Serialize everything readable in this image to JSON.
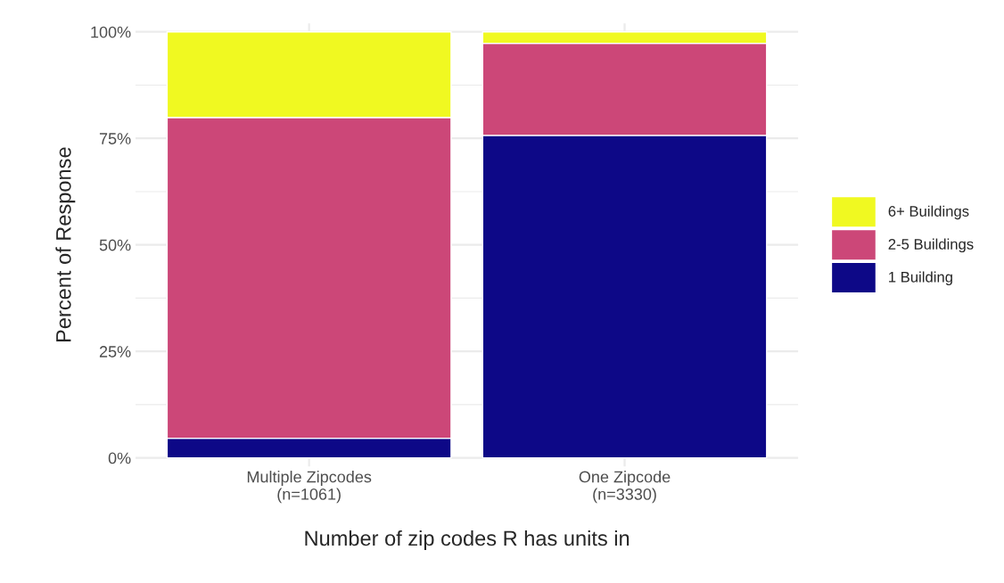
{
  "chart_data": {
    "type": "bar",
    "stacked": true,
    "xlabel": "Number of zip codes R has units in",
    "ylabel": "Percent of Response",
    "categories": [
      "Multiple Zipcodes\n(n=1061)",
      "One Zipcode\n(n=3330)"
    ],
    "series": [
      {
        "name": "1 Building",
        "color": "#0d0887",
        "values": [
          4.6,
          75.7
        ]
      },
      {
        "name": "2-5 Buildings",
        "color": "#cc4778",
        "values": [
          75.3,
          21.6
        ]
      },
      {
        "name": "6+ Buildings",
        "color": "#f0f921",
        "values": [
          20.1,
          2.7
        ]
      }
    ],
    "ylim": [
      -2,
      102
    ],
    "yticks": [
      {
        "value": 0,
        "label": "0%"
      },
      {
        "value": 25,
        "label": "25%"
      },
      {
        "value": 50,
        "label": "50%"
      },
      {
        "value": 75,
        "label": "75%"
      },
      {
        "value": 100,
        "label": "100%"
      }
    ],
    "grid": true,
    "legend": "right"
  }
}
